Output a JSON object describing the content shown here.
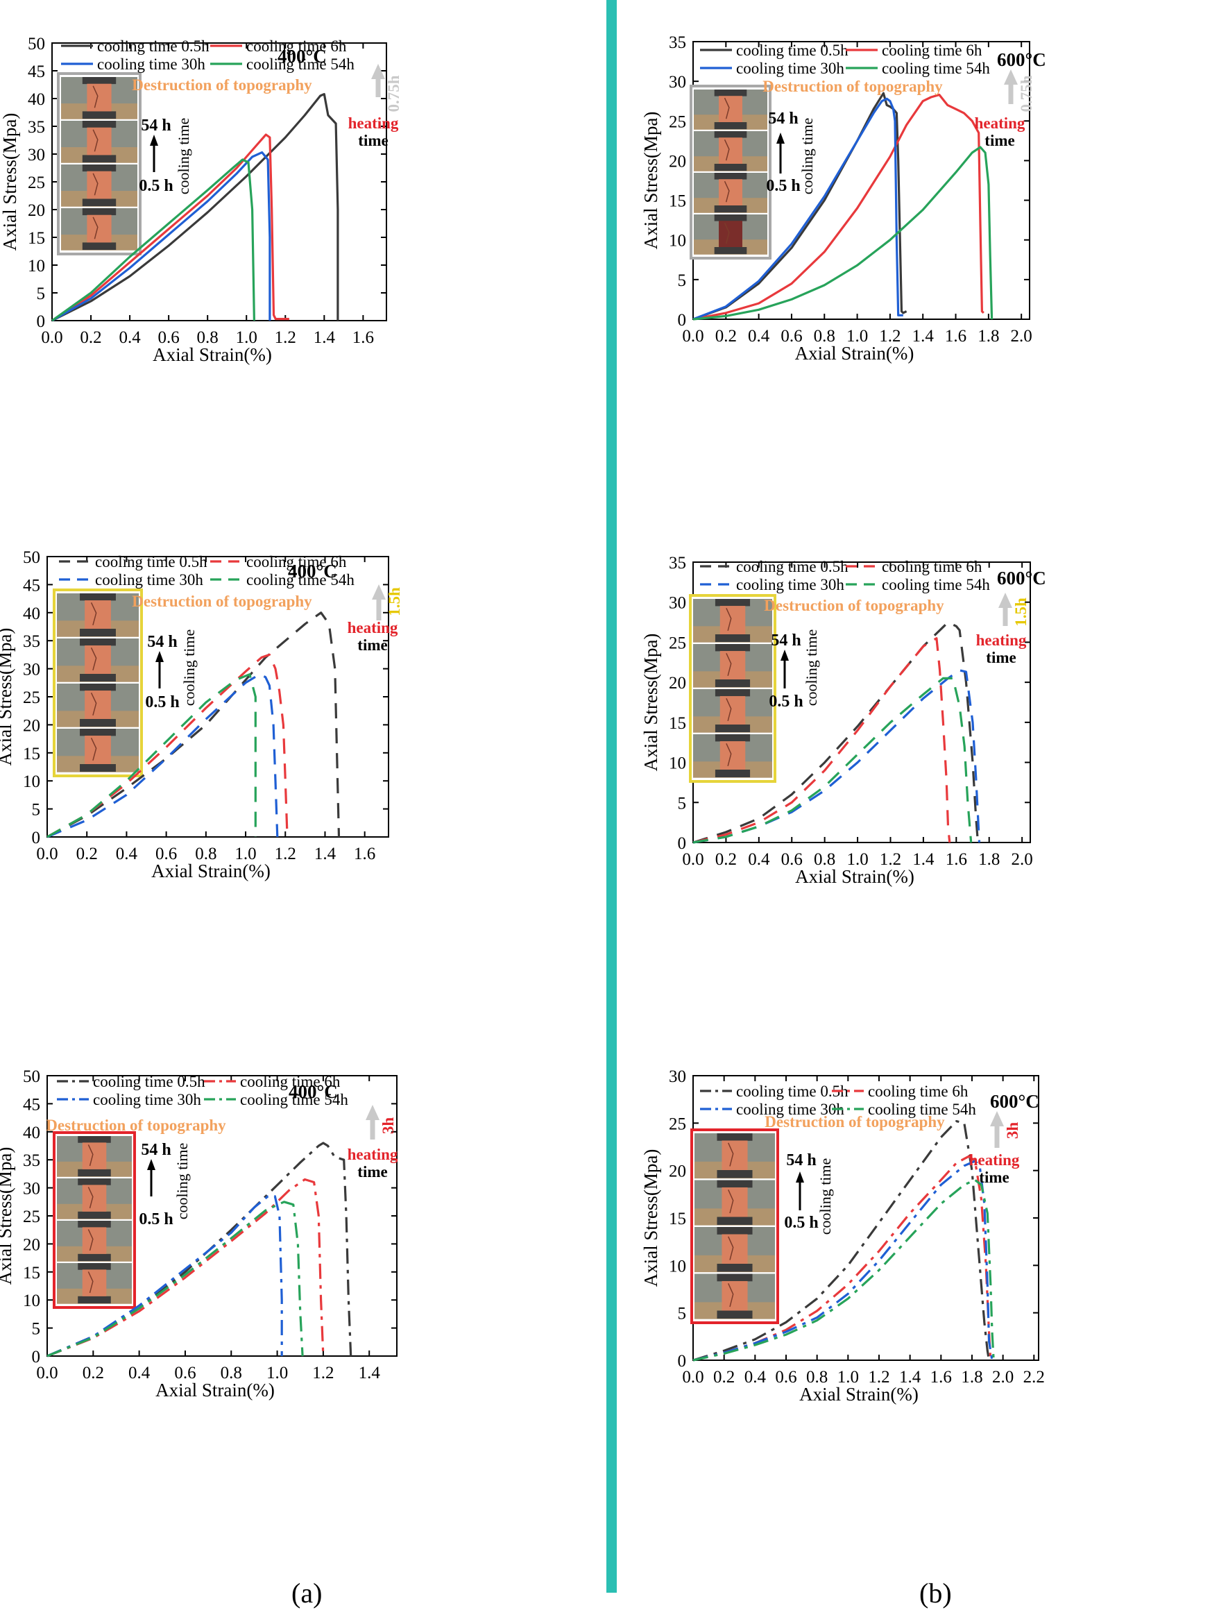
{
  "captions": {
    "left": "(a)",
    "right": "(b)"
  },
  "labels": {
    "topography": "Destruction of topography",
    "heating": "heating",
    "time": "time",
    "cooling_time": "cooling time",
    "top_time": "54 h",
    "bottom_time": "0.5 h"
  },
  "colors": {
    "s05": "#3a3a3a",
    "s6": "#e8393c",
    "s30": "#1f5fd4",
    "s54": "#27a35a",
    "divider": "#2bbfb3",
    "topography": "#f2a15d",
    "heating": "#e3242b",
    "duration_grey": "#c9c9c9",
    "duration_yellow": "#e6c800",
    "duration_red": "#e3242b"
  },
  "chart_data": [
    {
      "id": "a1",
      "type": "line",
      "linestyle": "solid",
      "temperature": "400°C",
      "duration": "0.75h",
      "xlabel": "Axial Strain(%)",
      "ylabel": "Axial Stress(Mpa)",
      "xlim": [
        0,
        1.72
      ],
      "ylim": [
        0,
        50
      ],
      "xticks": [
        "0.0",
        "0.2",
        "0.4",
        "0.6",
        "0.8",
        "1.0",
        "1.2",
        "1.4",
        "1.6"
      ],
      "yticks": [
        "0",
        "5",
        "10",
        "15",
        "20",
        "25",
        "30",
        "35",
        "40",
        "45",
        "50"
      ],
      "photo_frame": "grey",
      "series": [
        {
          "name": "cooling time 0.5h",
          "x": [
            0,
            0.2,
            0.4,
            0.6,
            0.8,
            1.0,
            1.2,
            1.3,
            1.38,
            1.4,
            1.42,
            1.46,
            1.47,
            1.47
          ],
          "y": [
            0,
            3.5,
            8.0,
            13.5,
            19.5,
            26.0,
            33.0,
            37.0,
            40.5,
            40.8,
            37.0,
            35.5,
            20.0,
            0
          ]
        },
        {
          "name": "cooling time 6h",
          "x": [
            0,
            0.2,
            0.4,
            0.6,
            0.8,
            0.95,
            1.05,
            1.1,
            1.12,
            1.13,
            1.14,
            1.15,
            1.22
          ],
          "y": [
            0,
            4.5,
            10.5,
            16.5,
            22.5,
            27.5,
            31.5,
            33.5,
            33.0,
            20.0,
            1.0,
            0.3,
            0.3
          ]
        },
        {
          "name": "cooling time 30h",
          "x": [
            0,
            0.2,
            0.4,
            0.6,
            0.8,
            0.95,
            1.03,
            1.08,
            1.11,
            1.12,
            1.12
          ],
          "y": [
            0,
            4.0,
            9.5,
            15.5,
            21.5,
            26.5,
            29.5,
            30.3,
            29.0,
            15.0,
            0
          ]
        },
        {
          "name": "cooling time 54h",
          "x": [
            0,
            0.2,
            0.4,
            0.6,
            0.8,
            0.93,
            0.98,
            1.01,
            1.03,
            1.04
          ],
          "y": [
            0,
            5.0,
            11.5,
            17.5,
            23.5,
            27.5,
            29.0,
            28.5,
            20.0,
            0
          ]
        }
      ]
    },
    {
      "id": "b1",
      "type": "line",
      "linestyle": "solid",
      "temperature": "600°C",
      "duration": "0.75h",
      "xlabel": "Axial Strain(%)",
      "ylabel": "Axial Stress(Mpa)",
      "xlim": [
        0,
        2.05
      ],
      "ylim": [
        0,
        35
      ],
      "xticks": [
        "0.0",
        "0.2",
        "0.4",
        "0.6",
        "0.8",
        "1.0",
        "1.2",
        "1.4",
        "1.6",
        "1.8",
        "2.0"
      ],
      "yticks": [
        "0",
        "5",
        "10",
        "15",
        "20",
        "25",
        "30",
        "35"
      ],
      "photo_frame": "grey",
      "series": [
        {
          "name": "cooling time 0.5h",
          "x": [
            0,
            0.2,
            0.4,
            0.6,
            0.8,
            1.0,
            1.1,
            1.16,
            1.18,
            1.2,
            1.22,
            1.24,
            1.25,
            1.27,
            1.28,
            1.3
          ],
          "y": [
            0,
            1.5,
            4.5,
            9.0,
            15.0,
            22.5,
            26.5,
            28.5,
            27.0,
            26.8,
            26.5,
            26.0,
            20.0,
            1.0,
            0.8,
            1.0
          ]
        },
        {
          "name": "cooling time 6h",
          "x": [
            0,
            0.2,
            0.4,
            0.6,
            0.8,
            1.0,
            1.2,
            1.3,
            1.4,
            1.45,
            1.5,
            1.55,
            1.6,
            1.65,
            1.7,
            1.74,
            1.75,
            1.76,
            1.77
          ],
          "y": [
            0,
            0.8,
            2.0,
            4.5,
            8.5,
            14.0,
            20.5,
            24.5,
            27.5,
            28.0,
            28.3,
            27.0,
            26.5,
            26.0,
            25.0,
            23.5,
            12.0,
            1.0,
            0.8
          ]
        },
        {
          "name": "cooling time 30h",
          "x": [
            0,
            0.2,
            0.4,
            0.6,
            0.8,
            1.0,
            1.1,
            1.15,
            1.18,
            1.2,
            1.22,
            1.23,
            1.24,
            1.25,
            1.28
          ],
          "y": [
            0,
            1.6,
            4.8,
            9.5,
            15.5,
            22.5,
            26.0,
            27.5,
            27.8,
            27.5,
            26.5,
            25.0,
            10.0,
            0.5,
            0.5
          ]
        },
        {
          "name": "cooling time 54h",
          "x": [
            0,
            0.2,
            0.4,
            0.6,
            0.8,
            1.0,
            1.2,
            1.4,
            1.6,
            1.7,
            1.75,
            1.78,
            1.8,
            1.81,
            1.82
          ],
          "y": [
            0,
            0.4,
            1.2,
            2.5,
            4.3,
            6.8,
            10.0,
            13.8,
            18.5,
            21.0,
            21.7,
            21.0,
            17.0,
            8.0,
            0
          ]
        }
      ]
    },
    {
      "id": "a2",
      "type": "line",
      "linestyle": "dashed",
      "temperature": "400°C",
      "duration": "1.5h",
      "xlabel": "Axial Strain(%)",
      "ylabel": "Axial Stress(Mpa)",
      "xlim": [
        0,
        1.72
      ],
      "ylim": [
        0,
        50
      ],
      "xticks": [
        "0.0",
        "0.2",
        "0.4",
        "0.6",
        "0.8",
        "1.0",
        "1.2",
        "1.4",
        "1.6"
      ],
      "yticks": [
        "0",
        "5",
        "10",
        "15",
        "20",
        "25",
        "30",
        "35",
        "40",
        "45",
        "50"
      ],
      "photo_frame": "yellow",
      "series": [
        {
          "name": "cooling time 0.5h",
          "x": [
            0,
            0.2,
            0.4,
            0.6,
            0.8,
            1.0,
            1.1,
            1.2,
            1.3,
            1.38,
            1.42,
            1.45,
            1.46,
            1.47
          ],
          "y": [
            0,
            3.8,
            8.7,
            14.0,
            20.0,
            28.0,
            32.0,
            35.0,
            38.0,
            40.0,
            38.0,
            30.0,
            15.0,
            0
          ]
        },
        {
          "name": "cooling time 6h",
          "x": [
            0,
            0.2,
            0.4,
            0.6,
            0.8,
            1.0,
            1.08,
            1.12,
            1.15,
            1.17,
            1.19,
            1.2,
            1.21
          ],
          "y": [
            0,
            4.0,
            9.5,
            16.0,
            23.0,
            29.5,
            32.0,
            32.5,
            30.0,
            26.0,
            20.0,
            10.0,
            0
          ]
        },
        {
          "name": "cooling time 30h",
          "x": [
            0,
            0.2,
            0.4,
            0.6,
            0.8,
            1.0,
            1.07,
            1.1,
            1.12,
            1.14,
            1.15,
            1.16
          ],
          "y": [
            0,
            3.0,
            7.5,
            14.0,
            21.0,
            27.5,
            29.0,
            28.5,
            27.0,
            20.0,
            10.0,
            0
          ]
        },
        {
          "name": "cooling time 54h",
          "x": [
            0,
            0.2,
            0.4,
            0.6,
            0.8,
            0.95,
            1.02,
            1.05,
            1.05
          ],
          "y": [
            0,
            4.0,
            10.0,
            17.0,
            24.0,
            28.0,
            29.0,
            25.0,
            0
          ]
        }
      ]
    },
    {
      "id": "b2",
      "type": "line",
      "linestyle": "dashed",
      "temperature": "600°C",
      "duration": "1.5h",
      "xlabel": "Axial Strain(%)",
      "ylabel": "Axial Stress(Mpa)",
      "xlim": [
        0,
        2.05
      ],
      "ylim": [
        0,
        35
      ],
      "xticks": [
        "0.0",
        "0.2",
        "0.4",
        "0.6",
        "0.8",
        "1.0",
        "1.2",
        "1.4",
        "1.6",
        "1.8",
        "2.0"
      ],
      "yticks": [
        "0",
        "5",
        "10",
        "15",
        "20",
        "25",
        "30",
        "35"
      ],
      "photo_frame": "yellow",
      "series": [
        {
          "name": "cooling time 0.5h",
          "x": [
            0,
            0.2,
            0.4,
            0.6,
            0.8,
            1.0,
            1.2,
            1.4,
            1.55,
            1.6,
            1.62,
            1.66,
            1.7,
            1.72,
            1.73,
            1.75
          ],
          "y": [
            0,
            1.3,
            3.0,
            6.0,
            10.0,
            14.5,
            19.5,
            24.5,
            27.5,
            27.0,
            26.5,
            20.0,
            10.0,
            3.0,
            0.5,
            0.3
          ]
        },
        {
          "name": "cooling time 6h",
          "x": [
            0,
            0.2,
            0.4,
            0.6,
            0.8,
            1.0,
            1.2,
            1.4,
            1.48,
            1.5,
            1.52,
            1.54,
            1.55,
            1.56
          ],
          "y": [
            0,
            1.0,
            2.5,
            5.0,
            9.0,
            14.0,
            19.5,
            24.5,
            25.5,
            21.5,
            15.0,
            8.0,
            2.0,
            0
          ]
        },
        {
          "name": "cooling time 30h",
          "x": [
            0,
            0.2,
            0.4,
            0.6,
            0.8,
            1.0,
            1.2,
            1.4,
            1.55,
            1.62,
            1.66,
            1.7,
            1.72,
            1.74
          ],
          "y": [
            0,
            0.7,
            2.0,
            3.8,
            6.5,
            10.0,
            14.0,
            18.0,
            20.5,
            21.5,
            21.3,
            15.0,
            8.0,
            0
          ]
        },
        {
          "name": "cooling time 54h",
          "x": [
            0,
            0.2,
            0.4,
            0.6,
            0.8,
            1.0,
            1.2,
            1.4,
            1.52,
            1.58,
            1.62,
            1.65,
            1.67,
            1.69
          ],
          "y": [
            0,
            0.7,
            2.0,
            4.0,
            7.0,
            11.0,
            15.0,
            18.5,
            20.5,
            20.5,
            17.0,
            12.0,
            5.0,
            0
          ]
        }
      ]
    },
    {
      "id": "a3",
      "type": "line",
      "linestyle": "dashdot",
      "temperature": "400°C",
      "duration": "3h",
      "xlabel": "Axial Strain(%)",
      "ylabel": "Axial Stress(Mpa)",
      "xlim": [
        0,
        1.52
      ],
      "ylim": [
        0,
        50
      ],
      "xticks": [
        "0.0",
        "0.2",
        "0.4",
        "0.6",
        "0.8",
        "1.0",
        "1.2",
        "1.4"
      ],
      "yticks": [
        "0",
        "5",
        "10",
        "15",
        "20",
        "25",
        "30",
        "35",
        "40",
        "45",
        "50"
      ],
      "photo_frame": "red",
      "series": [
        {
          "name": "cooling time 0.5h",
          "x": [
            0,
            0.2,
            0.4,
            0.6,
            0.8,
            1.0,
            1.1,
            1.18,
            1.2,
            1.22,
            1.25,
            1.29,
            1.3,
            1.31,
            1.32
          ],
          "y": [
            0,
            3.5,
            8.5,
            15.0,
            22.5,
            30.5,
            34.5,
            37.5,
            38.0,
            37.5,
            35.5,
            35.0,
            25.0,
            10.0,
            0
          ]
        },
        {
          "name": "cooling time 6h",
          "x": [
            0,
            0.2,
            0.4,
            0.6,
            0.8,
            0.95,
            1.05,
            1.12,
            1.16,
            1.18,
            1.19,
            1.2
          ],
          "y": [
            0,
            3.2,
            8.0,
            14.0,
            20.5,
            25.5,
            29.5,
            31.5,
            31.0,
            25.0,
            10.0,
            0
          ]
        },
        {
          "name": "cooling time 30h",
          "x": [
            0,
            0.2,
            0.4,
            0.6,
            0.8,
            0.9,
            0.96,
            0.99,
            1.01,
            1.02,
            1.02
          ],
          "y": [
            0,
            3.5,
            9.0,
            15.5,
            22.0,
            26.5,
            28.5,
            28.5,
            25.0,
            10.0,
            0
          ]
        },
        {
          "name": "cooling time 54h",
          "x": [
            0,
            0.2,
            0.4,
            0.6,
            0.8,
            0.95,
            1.03,
            1.07,
            1.09,
            1.1,
            1.11
          ],
          "y": [
            0,
            3.3,
            8.5,
            14.5,
            21.0,
            26.0,
            27.5,
            27.0,
            20.0,
            8.0,
            0
          ]
        }
      ]
    },
    {
      "id": "b3",
      "type": "line",
      "linestyle": "dashdot",
      "temperature": "600°C",
      "duration": "3h",
      "xlabel": "Axial Strain(%)",
      "ylabel": "Axial Stress(Mpa)",
      "xlim": [
        0,
        2.23
      ],
      "ylim": [
        0,
        30
      ],
      "xticks": [
        "0.0",
        "0.2",
        "0.4",
        "0.6",
        "0.8",
        "1.0",
        "1.2",
        "1.4",
        "1.6",
        "1.8",
        "2.0",
        "2.2"
      ],
      "yticks": [
        "0",
        "5",
        "10",
        "15",
        "20",
        "25",
        "30"
      ],
      "photo_frame": "red",
      "series": [
        {
          "name": "cooling time 0.5h",
          "x": [
            0,
            0.2,
            0.4,
            0.6,
            0.8,
            1.0,
            1.2,
            1.4,
            1.6,
            1.7,
            1.75,
            1.8,
            1.85,
            1.88,
            1.9,
            1.91
          ],
          "y": [
            0,
            1.0,
            2.2,
            4.0,
            6.5,
            10.0,
            14.5,
            19.0,
            23.5,
            25.2,
            25.0,
            20.0,
            10.0,
            4.0,
            1.0,
            0
          ]
        },
        {
          "name": "cooling time 6h",
          "x": [
            0,
            0.2,
            0.4,
            0.6,
            0.8,
            1.0,
            1.2,
            1.4,
            1.6,
            1.7,
            1.78,
            1.82,
            1.86,
            1.89,
            1.91,
            1.92
          ],
          "y": [
            0,
            0.8,
            1.8,
            3.2,
            5.2,
            8.0,
            11.5,
            15.5,
            19.0,
            20.8,
            21.5,
            21.0,
            17.0,
            10.0,
            3.0,
            0
          ]
        },
        {
          "name": "cooling time 30h",
          "x": [
            0,
            0.2,
            0.4,
            0.6,
            0.8,
            1.0,
            1.2,
            1.4,
            1.6,
            1.75,
            1.82,
            1.85,
            1.88,
            1.9,
            1.91,
            1.93
          ],
          "y": [
            0,
            0.8,
            1.8,
            3.0,
            4.5,
            7.0,
            10.5,
            14.5,
            18.5,
            20.5,
            21.0,
            20.5,
            16.5,
            8.0,
            2.0,
            0
          ]
        },
        {
          "name": "cooling time 54h",
          "x": [
            0,
            0.2,
            0.4,
            0.6,
            0.8,
            1.0,
            1.2,
            1.4,
            1.6,
            1.75,
            1.82,
            1.86,
            1.9,
            1.92,
            1.93,
            1.94
          ],
          "y": [
            0,
            0.7,
            1.6,
            2.7,
            4.2,
            6.5,
            9.5,
            13.0,
            16.5,
            18.5,
            19.0,
            18.5,
            15.5,
            8.0,
            3.0,
            0
          ]
        }
      ]
    }
  ]
}
